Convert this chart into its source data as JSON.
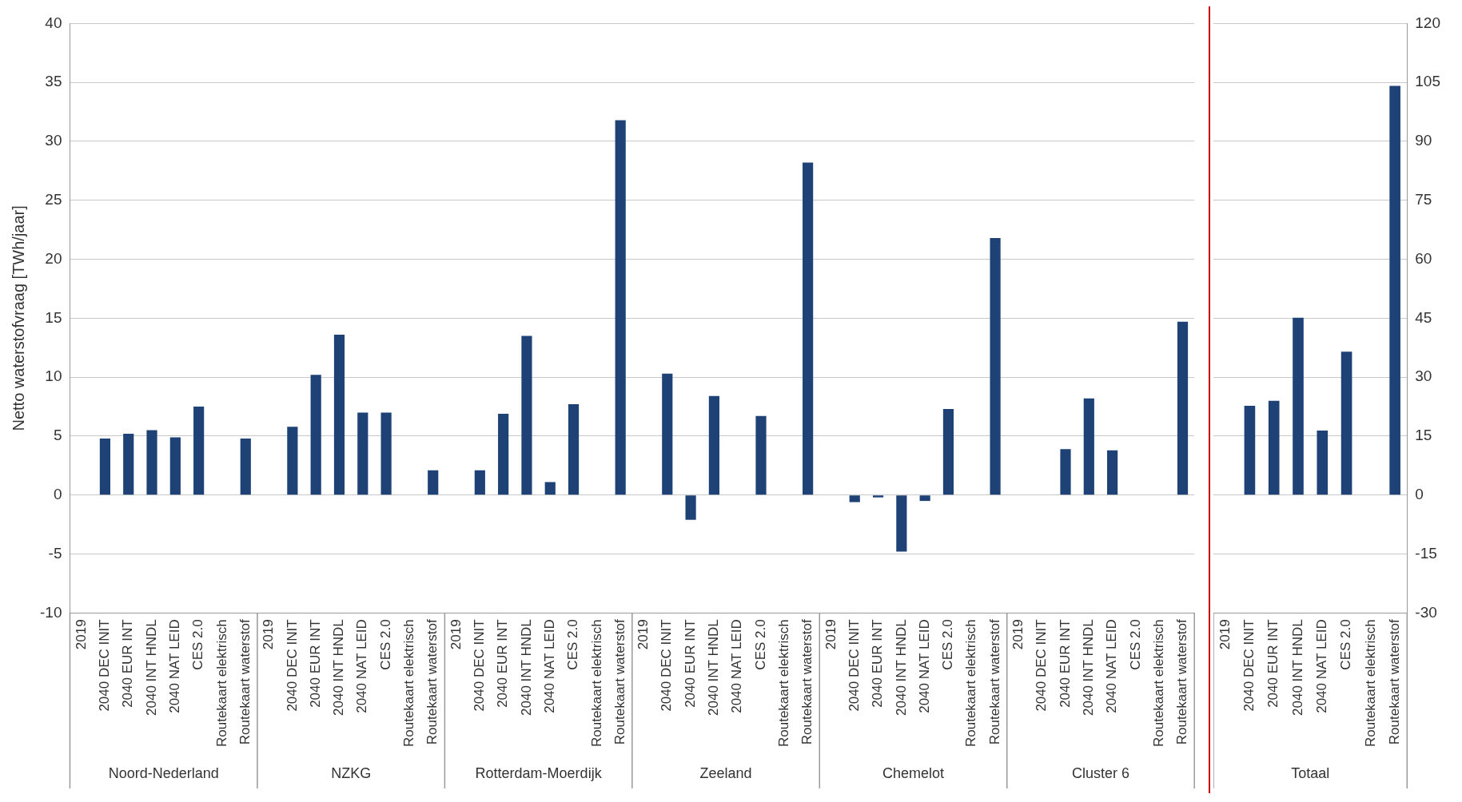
{
  "chart_data": [
    {
      "type": "bar",
      "ylabel": "Netto waterstofvraag [TWh/jaar]",
      "categories": [
        "2019",
        "2040 DEC INIT",
        "2040 EUR INT",
        "2040 INT HNDL",
        "2040 NAT LEID",
        "CES 2.0",
        "Routekaart elektrisch",
        "Routekaart waterstof",
        "2019",
        "2040 DEC INIT",
        "2040 EUR INT",
        "2040 INT HNDL",
        "2040 NAT LEID",
        "CES 2.0",
        "Routekaart elektrisch",
        "Routekaart waterstof",
        "2019",
        "2040 DEC INIT",
        "2040 EUR INT",
        "2040 INT HNDL",
        "2040 NAT LEID",
        "CES 2.0",
        "Routekaart elektrisch",
        "Routekaart waterstof",
        "2019",
        "2040 DEC INIT",
        "2040 EUR INT",
        "2040 INT HNDL",
        "2040 NAT LEID",
        "CES 2.0",
        "Routekaart elektrisch",
        "Routekaart waterstof",
        "2019",
        "2040 DEC INIT",
        "2040 EUR INT",
        "2040 INT HNDL",
        "2040 NAT LEID",
        "CES 2.0",
        "Routekaart elektrisch",
        "Routekaart waterstof",
        "2019",
        "2040 DEC INIT",
        "2040 EUR INT",
        "2040 INT HNDL",
        "2040 NAT LEID",
        "CES 2.0",
        "Routekaart elektrisch",
        "Routekaart waterstof"
      ],
      "series": [
        {
          "color": "#1e4276",
          "values": [
            null,
            4.8,
            5.2,
            5.5,
            4.9,
            7.5,
            null,
            4.8,
            null,
            5.8,
            10.2,
            13.6,
            7.0,
            7.0,
            null,
            2.1,
            null,
            2.1,
            6.9,
            13.5,
            1.1,
            7.7,
            null,
            31.8,
            null,
            10.3,
            -2.1,
            8.4,
            null,
            6.7,
            null,
            28.2,
            null,
            -0.6,
            -0.2,
            -4.8,
            -0.5,
            7.3,
            null,
            21.8,
            null,
            null,
            3.9,
            8.2,
            3.8,
            null,
            null,
            14.7
          ]
        }
      ],
      "ylim": [
        -10,
        40
      ],
      "yticks": [
        -10,
        -5,
        0,
        5,
        10,
        15,
        20,
        25,
        30,
        35,
        40
      ],
      "grid": "y",
      "annotations": [
        "Noord-Nederland",
        "NZKG",
        "Rotterdam-Moerdijk",
        "Zeeland",
        "Chemelot",
        "Cluster 6"
      ]
    },
    {
      "type": "bar",
      "categories": [
        "2019",
        "2040 DEC INIT",
        "2040 EUR INT",
        "2040 INT HNDL",
        "2040 NAT LEID",
        "CES 2.0",
        "Routekaart elektrisch",
        "Routekaart waterstof"
      ],
      "series": [
        {
          "color": "#1e4276",
          "axis": "y2",
          "values": [
            null,
            22.7,
            24.0,
            45.1,
            16.4,
            36.5,
            null,
            104.1
          ]
        }
      ],
      "y2lim": [
        -30,
        120
      ],
      "y2ticks": [
        -30,
        -15,
        0,
        15,
        30,
        45,
        60,
        75,
        90,
        105,
        120
      ],
      "grid": "y",
      "annotations": [
        "Totaal"
      ]
    }
  ]
}
